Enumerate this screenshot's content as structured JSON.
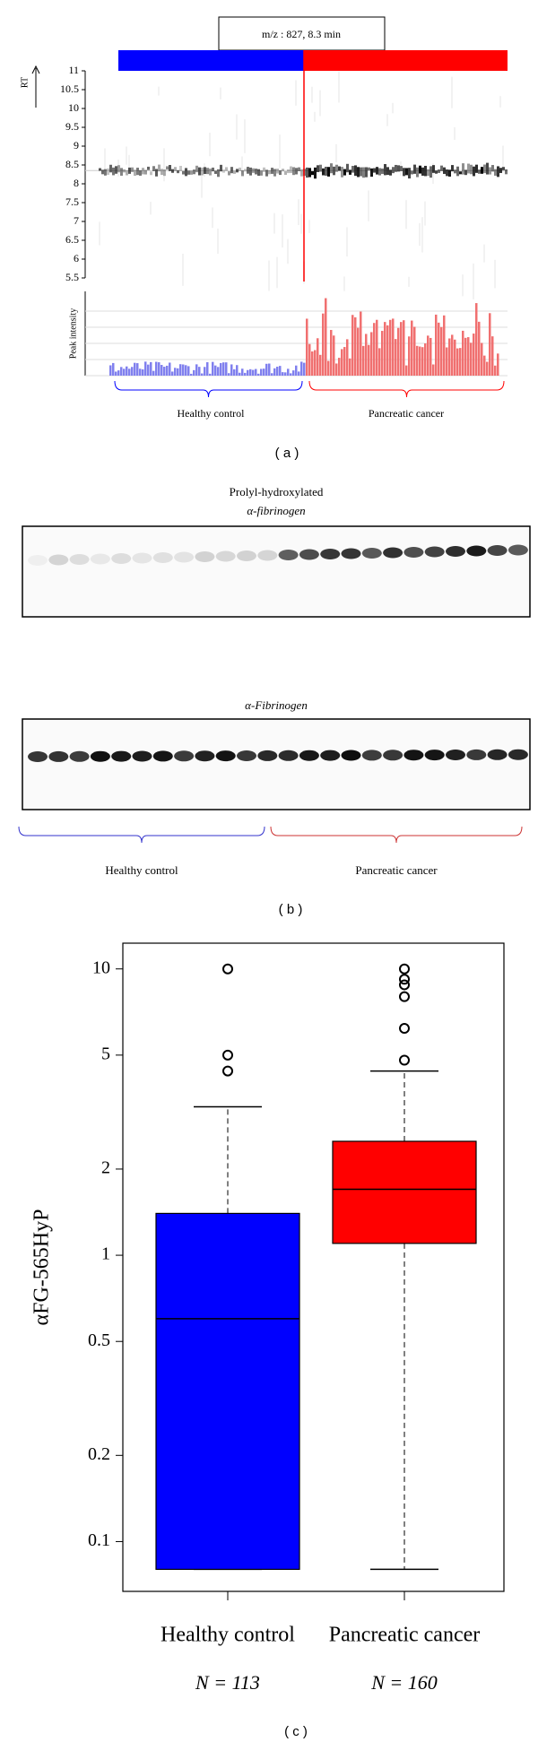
{
  "chart_data": [
    {
      "type": "heatmap",
      "title": "m/z : 827, 8.3 min",
      "ylabel": "RT",
      "y2label": "Peak intensity",
      "ylim": [
        5.5,
        11
      ],
      "yticks": [
        5.5,
        6,
        6.5,
        7,
        7.5,
        8,
        8.5,
        9,
        9.5,
        10,
        10.5,
        11
      ],
      "categories": [
        "Healthy control",
        "Pancreatic cancer"
      ],
      "colors": [
        "#0000ff",
        "#ff0000"
      ],
      "panel": "( a )"
    },
    {
      "type": "blot",
      "titles": [
        "Prolyl-hydroxylated",
        "α-fibrinogen",
        "α-Fibrinogen"
      ],
      "categories": [
        "Healthy control",
        "Pancreatic cancer"
      ],
      "colors": [
        "#3333cc",
        "#cc3333"
      ],
      "panel": "( b )"
    },
    {
      "type": "box",
      "ylabel": "αFG-565HyP",
      "log": true,
      "ylim": [
        0.067,
        12.3
      ],
      "yticks": [
        0.1,
        0.2,
        0.5,
        1,
        2,
        5,
        10
      ],
      "categories": [
        "Healthy control",
        "Pancreatic cancer"
      ],
      "n_labels": [
        "N = 113",
        "N = 160"
      ],
      "boxes": [
        {
          "color": "#0000ff",
          "min": 0.08,
          "q1": 0.08,
          "median": 0.6,
          "q3": 1.4,
          "max": 3.3,
          "outliers": [
            4.4,
            5,
            10
          ]
        },
        {
          "color": "#ff0000",
          "min": 0.08,
          "q1": 1.1,
          "median": 1.7,
          "q3": 2.5,
          "max": 4.4,
          "outliers": [
            4.8,
            6.2,
            8,
            8.8,
            9.2,
            10
          ]
        }
      ],
      "panel": "( c )"
    }
  ]
}
